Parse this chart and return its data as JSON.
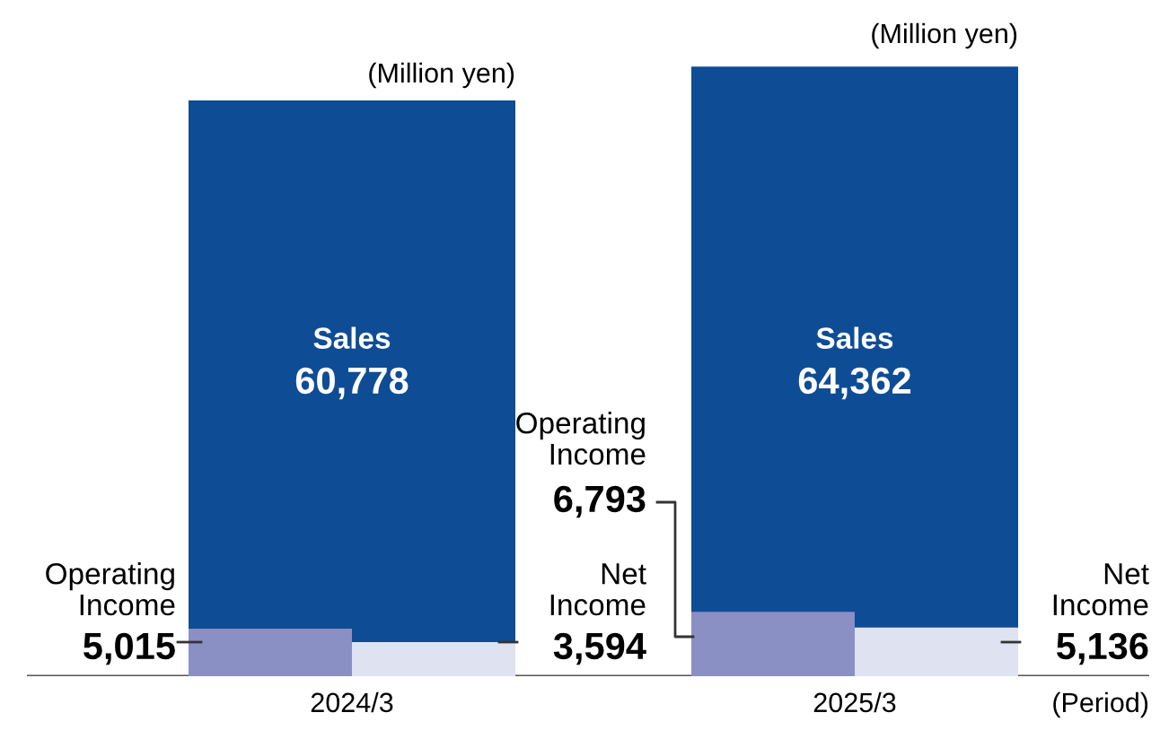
{
  "chart_data": {
    "type": "bar",
    "categories": [
      "2024/3",
      "2025/3"
    ],
    "series": [
      {
        "name": "Sales",
        "color": "#0f4c96",
        "values": [
          60778,
          64362
        ],
        "value_labels": [
          "60,778",
          "64,362"
        ]
      },
      {
        "name": "Operating Income",
        "color": "#8a8fc4",
        "values": [
          5015,
          6793
        ],
        "value_labels": [
          "5,015",
          "6,793"
        ]
      },
      {
        "name": "Net Income",
        "color": "#dfe2f0",
        "values": [
          3594,
          5136
        ],
        "value_labels": [
          "3,594",
          "5,136"
        ]
      }
    ],
    "annotations": [
      "(Million yen)",
      "(Million yen)",
      "(Period)"
    ]
  }
}
